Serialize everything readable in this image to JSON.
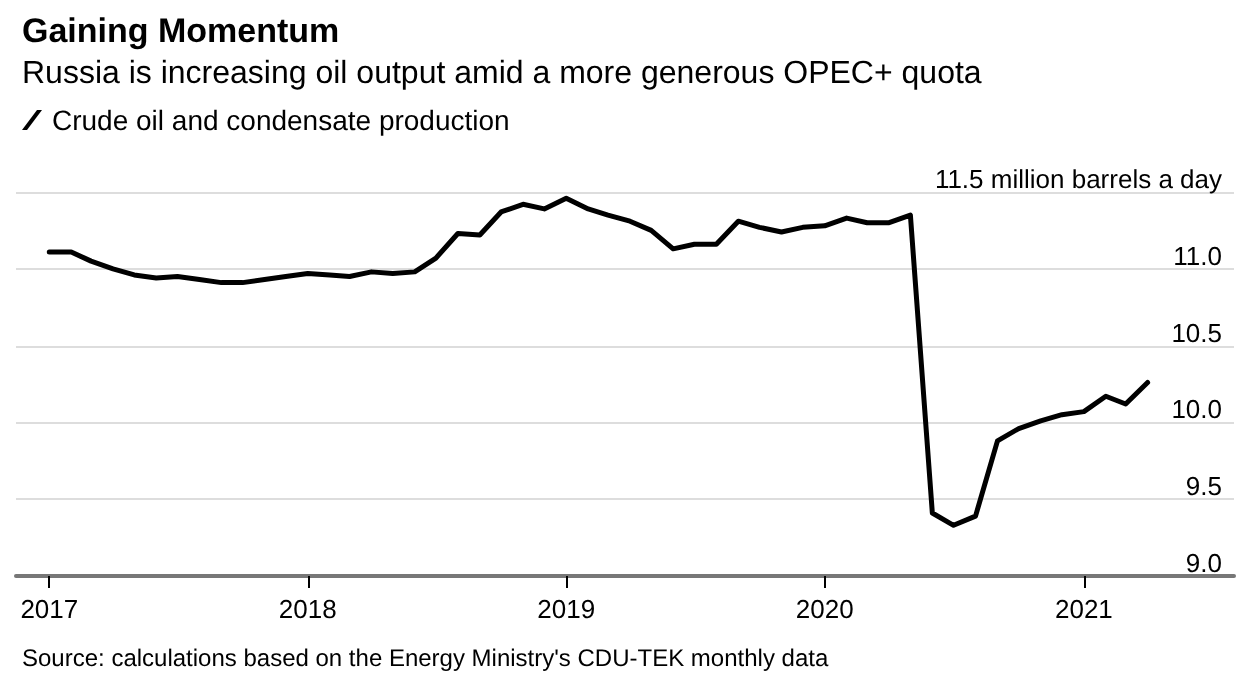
{
  "chart_data": {
    "type": "line",
    "title": "Gaining Momentum",
    "subtitle": "Russia is increasing oil output amid a more generous OPEC+ quota",
    "annotations": [
      "Source: calculations based on the Energy Ministry's CDU-TEK monthly data"
    ],
    "x": [
      "2017-01",
      "2017-02",
      "2017-03",
      "2017-04",
      "2017-05",
      "2017-06",
      "2017-07",
      "2017-08",
      "2017-09",
      "2017-10",
      "2017-11",
      "2017-12",
      "2018-01",
      "2018-02",
      "2018-03",
      "2018-04",
      "2018-05",
      "2018-06",
      "2018-07",
      "2018-08",
      "2018-09",
      "2018-10",
      "2018-11",
      "2018-12",
      "2019-01",
      "2019-02",
      "2019-03",
      "2019-04",
      "2019-05",
      "2019-06",
      "2019-07",
      "2019-08",
      "2019-09",
      "2019-10",
      "2019-11",
      "2019-12",
      "2020-01",
      "2020-02",
      "2020-03",
      "2020-04",
      "2020-05",
      "2020-06",
      "2020-07",
      "2020-08",
      "2020-09",
      "2020-10",
      "2020-11",
      "2020-12",
      "2021-01",
      "2021-02",
      "2021-03",
      "2021-04"
    ],
    "series": [
      {
        "name": "Crude oil and condensate production",
        "color": "#000000",
        "values": [
          11.11,
          11.11,
          11.05,
          11.0,
          10.96,
          10.94,
          10.95,
          10.93,
          10.91,
          10.91,
          10.93,
          10.95,
          10.97,
          10.96,
          10.95,
          10.98,
          10.97,
          10.98,
          11.07,
          11.23,
          11.22,
          11.37,
          11.42,
          11.39,
          11.46,
          11.39,
          11.35,
          11.31,
          11.25,
          11.13,
          11.16,
          11.16,
          11.31,
          11.27,
          11.24,
          11.27,
          11.28,
          11.33,
          11.3,
          11.3,
          11.35,
          9.41,
          9.33,
          9.39,
          9.88,
          9.96,
          10.01,
          10.05,
          10.07,
          10.17,
          10.12,
          10.26
        ]
      }
    ],
    "xlim": [
      "2016-11-15",
      "2021-08-01"
    ],
    "xticks": [
      "2017",
      "2018",
      "2019",
      "2020",
      "2021"
    ],
    "ylim": [
      9.0,
      11.5
    ],
    "yticks": [
      {
        "value": 9.0,
        "label": "9.0"
      },
      {
        "value": 9.5,
        "label": "9.5"
      },
      {
        "value": 10.0,
        "label": "10.0"
      },
      {
        "value": 10.5,
        "label": "10.5"
      },
      {
        "value": 11.0,
        "label": "11.0"
      },
      {
        "value": 11.5,
        "label": "11.5 million barrels a day"
      }
    ],
    "grid": "y",
    "legend": "top left",
    "marker": "none",
    "line_style": "solid"
  }
}
